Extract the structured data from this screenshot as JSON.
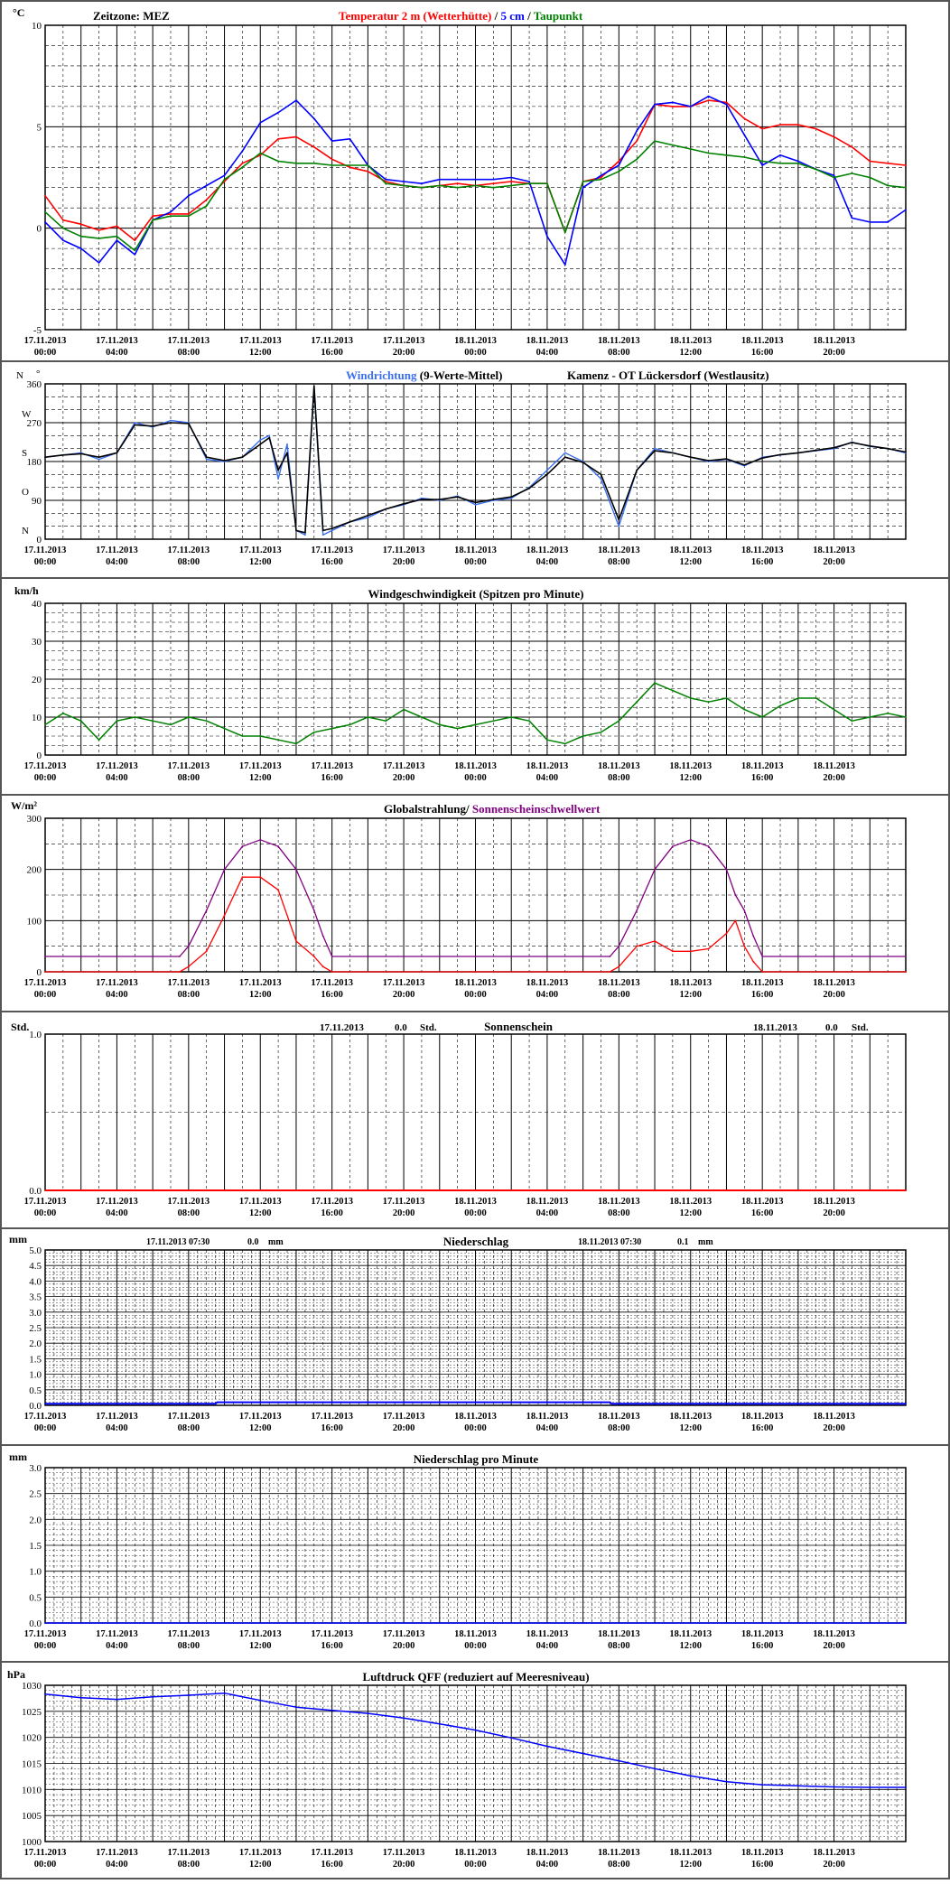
{
  "x_axis": {
    "dates": [
      "17.11.2013",
      "17.11.2013",
      "17.11.2013",
      "17.11.2013",
      "17.11.2013",
      "17.11.2013",
      "18.11.2013",
      "18.11.2013",
      "18.11.2013",
      "18.11.2013",
      "18.11.2013",
      "18.11.2013"
    ],
    "times": [
      "00:00",
      "04:00",
      "08:00",
      "12:00",
      "16:00",
      "20:00",
      "00:00",
      "04:00",
      "08:00",
      "12:00",
      "16:00",
      "20:00"
    ]
  },
  "colors": {
    "temp2m": "#ff0000",
    "temp5cm": "#0000ff",
    "dewpoint": "#008000",
    "wind_dir": "#3a6ff0",
    "wind_dir_mean": "#000000",
    "wind_speed": "#008000",
    "radiation": "#ff0000",
    "sunshine_threshold": "#800080",
    "sunshine": "#ff0000",
    "precip": "#0000ff",
    "pressure": "#0000ff"
  },
  "chart_data": [
    {
      "type": "line",
      "ylabel": "°C",
      "ylim": [
        -5,
        10
      ],
      "yticks": [
        -5,
        0,
        5,
        10
      ],
      "x_unit": "hours since 17.11.2013 00:00",
      "timezone_label": "Zeitzone: MEZ",
      "title_parts": [
        "Temperatur 2 m (Wetterhütte)",
        "  /  ",
        "5 cm",
        " / ",
        "Taupunkt"
      ],
      "series": [
        {
          "name": "Temperatur 2 m (Wetterhütte)",
          "color": "#ff0000",
          "x": [
            0,
            1,
            2,
            3,
            4,
            5,
            6,
            7,
            8,
            9,
            10,
            11,
            12,
            13,
            14,
            15,
            16,
            17,
            18,
            19,
            20,
            21,
            22,
            23,
            24,
            25,
            26,
            27,
            28,
            29,
            30,
            31,
            32,
            33,
            34,
            35,
            36,
            37,
            38,
            39,
            40,
            41,
            42,
            43,
            44,
            45,
            46,
            47,
            48
          ],
          "y": [
            1.6,
            0.4,
            0.2,
            -0.1,
            0.1,
            -0.6,
            0.6,
            0.7,
            0.7,
            1.4,
            2.3,
            3.2,
            3.6,
            4.4,
            4.5,
            4.0,
            3.4,
            3.0,
            2.8,
            2.3,
            2.1,
            2.0,
            2.1,
            2.2,
            2.1,
            2.2,
            2.3,
            2.2,
            2.2,
            -0.2,
            2.3,
            2.5,
            3.3,
            4.3,
            6.1,
            6.0,
            6.0,
            6.3,
            6.2,
            5.4,
            4.9,
            5.1,
            5.1,
            4.9,
            4.5,
            4.0,
            3.3,
            3.2,
            3.1
          ]
        },
        {
          "name": "5 cm",
          "color": "#0000ff",
          "x": [
            0,
            1,
            2,
            3,
            4,
            5,
            6,
            7,
            8,
            9,
            10,
            11,
            12,
            13,
            14,
            15,
            16,
            17,
            18,
            19,
            20,
            21,
            22,
            23,
            24,
            25,
            26,
            27,
            28,
            29,
            30,
            31,
            32,
            33,
            34,
            35,
            36,
            37,
            38,
            39,
            40,
            41,
            42,
            43,
            44,
            45,
            46,
            47,
            48
          ],
          "y": [
            0.3,
            -0.6,
            -1.0,
            -1.7,
            -0.6,
            -1.3,
            0.4,
            0.8,
            1.6,
            2.1,
            2.6,
            3.8,
            5.2,
            5.7,
            6.3,
            5.4,
            4.3,
            4.4,
            3.1,
            2.4,
            2.3,
            2.2,
            2.4,
            2.4,
            2.4,
            2.4,
            2.5,
            2.3,
            -0.4,
            -1.8,
            2.0,
            2.6,
            3.1,
            4.8,
            6.1,
            6.2,
            6.0,
            6.5,
            6.1,
            4.6,
            3.1,
            3.6,
            3.3,
            2.9,
            2.6,
            0.5,
            0.3,
            0.3,
            0.9
          ]
        },
        {
          "name": "Taupunkt",
          "color": "#008000",
          "x": [
            0,
            1,
            2,
            3,
            4,
            5,
            6,
            7,
            8,
            9,
            10,
            11,
            12,
            13,
            14,
            15,
            16,
            17,
            18,
            19,
            20,
            21,
            22,
            23,
            24,
            25,
            26,
            27,
            28,
            29,
            30,
            31,
            32,
            33,
            34,
            35,
            36,
            37,
            38,
            39,
            40,
            41,
            42,
            43,
            44,
            45,
            46,
            47,
            48
          ],
          "y": [
            0.8,
            0.0,
            -0.4,
            -0.5,
            -0.4,
            -1.1,
            0.4,
            0.6,
            0.6,
            1.1,
            2.4,
            3.0,
            3.7,
            3.3,
            3.2,
            3.2,
            3.1,
            3.1,
            3.1,
            2.2,
            2.1,
            2.0,
            2.1,
            2.0,
            2.1,
            2.0,
            2.1,
            2.2,
            2.2,
            -0.2,
            2.3,
            2.4,
            2.8,
            3.4,
            4.3,
            4.1,
            3.9,
            3.7,
            3.6,
            3.5,
            3.3,
            3.2,
            3.2,
            2.9,
            2.5,
            2.7,
            2.5,
            2.1,
            2.0
          ]
        }
      ]
    },
    {
      "type": "line",
      "ylim": [
        0,
        360
      ],
      "yticks": [
        0,
        90,
        180,
        270,
        360
      ],
      "compass_labels": [
        "N",
        "O",
        "S",
        "W",
        "N"
      ],
      "compass_unit": "°",
      "x_unit": "hours since 17.11.2013 00:00",
      "title_parts": [
        "Windrichtung",
        " (9-Werte-Mittel)"
      ],
      "station": "Kamenz - OT Lückersdorf (Westlausitz)",
      "series": [
        {
          "name": "Windrichtung",
          "color": "#3a6ff0",
          "x": [
            0,
            1,
            2,
            3,
            4,
            5,
            6,
            7,
            8,
            9,
            10,
            11,
            12,
            12.5,
            13,
            13.5,
            14,
            14.5,
            15,
            15.5,
            16,
            17,
            18,
            19,
            20,
            21,
            22,
            23,
            24,
            25,
            26,
            27,
            28,
            29,
            30,
            31,
            32,
            33,
            34,
            35,
            36,
            37,
            38,
            39,
            40,
            41,
            42,
            43,
            44,
            45,
            46,
            47,
            48
          ],
          "y": [
            190,
            195,
            200,
            185,
            200,
            270,
            260,
            275,
            270,
            185,
            180,
            190,
            230,
            240,
            140,
            220,
            20,
            10,
            350,
            10,
            20,
            40,
            50,
            70,
            80,
            95,
            90,
            100,
            80,
            90,
            95,
            120,
            160,
            200,
            180,
            140,
            30,
            160,
            210,
            200,
            190,
            180,
            185,
            170,
            190,
            195,
            200,
            205,
            210,
            225,
            215,
            210,
            200
          ]
        }
      ],
      "mean_series": {
        "x": [
          0,
          1,
          2,
          3,
          4,
          5,
          6,
          7,
          8,
          9,
          10,
          11,
          12,
          12.5,
          13,
          13.5,
          14,
          14.5,
          15,
          15.5,
          16,
          17,
          18,
          19,
          20,
          21,
          22,
          23,
          24,
          25,
          26,
          27,
          28,
          29,
          30,
          31,
          32,
          33,
          34,
          35,
          36,
          37,
          38,
          39,
          40,
          41,
          42,
          43,
          44,
          45,
          46,
          47,
          48
        ],
        "y": [
          190,
          195,
          198,
          190,
          200,
          265,
          262,
          270,
          268,
          190,
          182,
          190,
          220,
          235,
          160,
          200,
          20,
          15,
          355,
          20,
          25,
          40,
          55,
          70,
          82,
          92,
          92,
          98,
          85,
          92,
          98,
          118,
          150,
          190,
          178,
          150,
          45,
          160,
          205,
          200,
          190,
          182,
          186,
          172,
          188,
          196,
          200,
          206,
          212,
          224,
          216,
          210,
          202
        ]
      }
    },
    {
      "type": "line",
      "ylabel": "km/h",
      "ylim": [
        0,
        40
      ],
      "yticks": [
        0,
        10,
        20,
        30,
        40
      ],
      "x_unit": "hours since 17.11.2013 00:00",
      "title": "Windgeschwindigkeit (Spitzen pro Minute)",
      "series": [
        {
          "name": "Windgeschwindigkeit",
          "color": "#008000",
          "x": [
            0,
            1,
            2,
            3,
            4,
            5,
            6,
            7,
            8,
            9,
            10,
            11,
            12,
            13,
            14,
            15,
            16,
            17,
            18,
            19,
            20,
            21,
            22,
            23,
            24,
            25,
            26,
            27,
            28,
            29,
            30,
            31,
            32,
            33,
            34,
            35,
            36,
            37,
            38,
            39,
            40,
            41,
            42,
            43,
            44,
            45,
            46,
            47,
            48
          ],
          "y": [
            8,
            11,
            9,
            4,
            9,
            10,
            9,
            8,
            10,
            9,
            7,
            5,
            5,
            4,
            3,
            6,
            7,
            8,
            10,
            9,
            12,
            10,
            8,
            7,
            8,
            9,
            10,
            9,
            4,
            3,
            5,
            6,
            9,
            14,
            19,
            17,
            15,
            14,
            15,
            12,
            10,
            13,
            15,
            15,
            12,
            9,
            10,
            11,
            10
          ]
        }
      ]
    },
    {
      "type": "line",
      "ylabel": "W/m²",
      "ylim": [
        0,
        300
      ],
      "yticks": [
        0,
        100,
        200,
        300
      ],
      "x_unit": "hours since 17.11.2013 00:00",
      "title_parts": [
        "Globalstrahlung/ ",
        "Sonnenscheinschwellwert"
      ],
      "series": [
        {
          "name": "Globalstrahlung",
          "color": "#ff0000",
          "x": [
            0,
            7.5,
            8,
            9,
            10,
            11,
            12,
            13,
            14,
            15,
            15.5,
            16,
            24,
            31.5,
            32,
            33,
            34,
            35,
            36,
            37,
            38,
            38.5,
            39,
            39.5,
            40,
            48
          ],
          "y": [
            0,
            0,
            10,
            40,
            110,
            185,
            185,
            160,
            60,
            30,
            10,
            0,
            0,
            0,
            10,
            50,
            60,
            40,
            40,
            45,
            75,
            100,
            50,
            20,
            0,
            0
          ]
        },
        {
          "name": "Sonnenscheinschwellwert",
          "color": "#800080",
          "x": [
            0,
            7.5,
            8,
            9,
            10,
            11,
            12,
            13,
            14,
            15,
            15.5,
            16,
            24,
            31.5,
            32,
            33,
            34,
            35,
            36,
            37,
            38,
            38.5,
            39,
            39.5,
            40,
            48
          ],
          "y": [
            30,
            30,
            50,
            120,
            200,
            245,
            258,
            245,
            200,
            120,
            70,
            30,
            30,
            30,
            50,
            120,
            200,
            245,
            258,
            245,
            200,
            150,
            120,
            70,
            30,
            30
          ]
        }
      ]
    },
    {
      "type": "line",
      "ylabel": "Std.",
      "ylim": [
        0,
        1
      ],
      "yticks": [
        0,
        0.5,
        1
      ],
      "ytick_labels": [
        "0.0",
        "",
        "1.0"
      ],
      "x_unit": "hours since 17.11.2013 00:00",
      "title": "Sonnenschein",
      "day_totals": [
        {
          "date": "17.11.2013",
          "value": "0.0",
          "unit": "Std."
        },
        {
          "date": "18.11.2013",
          "value": "0.0",
          "unit": "Std."
        }
      ],
      "series": [
        {
          "name": "Sonnenschein",
          "color": "#ff0000",
          "x": [
            0,
            48
          ],
          "y": [
            0,
            0
          ]
        }
      ]
    },
    {
      "type": "line",
      "ylabel": "mm",
      "ylim": [
        0,
        5
      ],
      "yticks": [
        0,
        0.5,
        1,
        1.5,
        2,
        2.5,
        3,
        3.5,
        4,
        4.5,
        5
      ],
      "ytick_labels": [
        "0.0",
        "0.5",
        "1.0",
        "1.5",
        "2.0",
        "2.5",
        "3.0",
        "3.5",
        "4.0",
        "4.5",
        "5.0"
      ],
      "x_unit": "hours since 17.11.2013 00:00",
      "title": "Niederschlag",
      "day_totals": [
        {
          "date": "17.11.2013 07:30",
          "value": "0.0",
          "unit": "mm"
        },
        {
          "date": "18.11.2013 07:30",
          "value": "0.1",
          "unit": "mm"
        }
      ],
      "series": [
        {
          "name": "Niederschlag",
          "color": "#0000ff",
          "x": [
            0,
            9.5,
            9.6,
            31.5,
            31.6,
            48
          ],
          "y": [
            0.05,
            0.05,
            0.1,
            0.1,
            0.05,
            0.05
          ]
        }
      ]
    },
    {
      "type": "line",
      "ylabel": "mm",
      "ylim": [
        0,
        3
      ],
      "yticks": [
        0,
        0.5,
        1,
        1.5,
        2,
        2.5,
        3
      ],
      "ytick_labels": [
        "0.0",
        "0.5",
        "1.0",
        "1.5",
        "2.0",
        "2.5",
        "3.0"
      ],
      "x_unit": "hours since 17.11.2013 00:00",
      "title": "Niederschlag pro Minute",
      "series": [
        {
          "name": "Niederschlag pro Minute",
          "color": "#0000ff",
          "x": [
            0,
            48
          ],
          "y": [
            0,
            0
          ]
        }
      ]
    },
    {
      "type": "line",
      "ylabel": "hPa",
      "ylim": [
        1000,
        1030
      ],
      "yticks": [
        1000,
        1005,
        1010,
        1015,
        1020,
        1025,
        1030
      ],
      "x_unit": "hours since 17.11.2013 00:00",
      "title": "Luftdruck QFF (reduziert auf Meeresniveau)",
      "series": [
        {
          "name": "Luftdruck QFF",
          "color": "#0000ff",
          "x": [
            0,
            2,
            4,
            6,
            8,
            10,
            12,
            14,
            16,
            18,
            20,
            22,
            24,
            26,
            28,
            30,
            32,
            34,
            36,
            38,
            40,
            42,
            44,
            46,
            48
          ],
          "y": [
            1028.3,
            1027.6,
            1027.3,
            1027.8,
            1028.1,
            1028.5,
            1027.1,
            1025.8,
            1025.2,
            1024.6,
            1023.7,
            1022.6,
            1021.4,
            1019.9,
            1018.3,
            1016.9,
            1015.5,
            1014.0,
            1012.6,
            1011.5,
            1010.9,
            1010.7,
            1010.5,
            1010.4,
            1010.4
          ]
        }
      ]
    }
  ]
}
